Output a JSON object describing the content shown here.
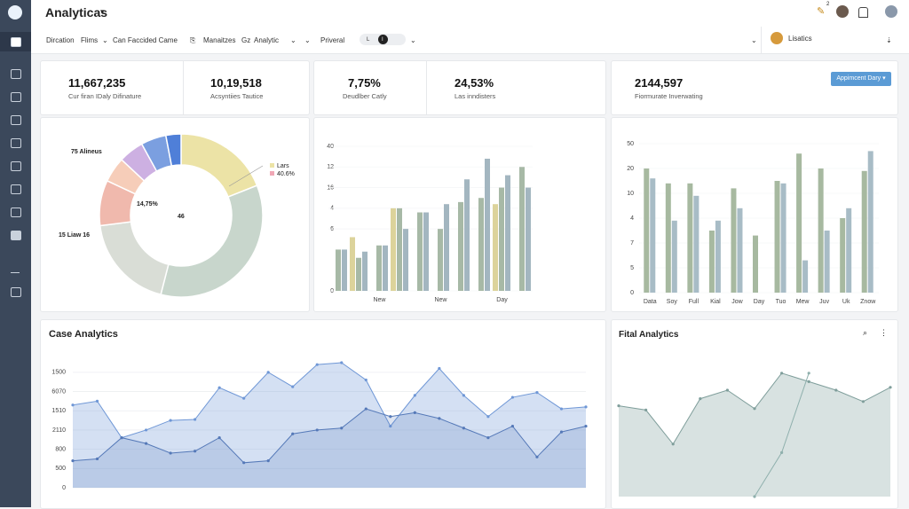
{
  "header": {
    "title": "Analyticas",
    "badge": "2"
  },
  "filters": {
    "items": [
      "Dircation",
      "Flims",
      "Can Faccided Came",
      "Manaitzes",
      "Gz",
      "Analytic",
      "Priveral"
    ],
    "toggle": [
      "L",
      "I"
    ],
    "user": "Lisatics"
  },
  "kpis": [
    {
      "value": "11,667,235",
      "label": "Cur firan IDaly Difinature"
    },
    {
      "value": "10,19,518",
      "label": "Acsyntiies Tautice"
    },
    {
      "value": "7,75%",
      "label": "Deudlber Catly"
    },
    {
      "value": "24,53%",
      "label": "Las inndisters"
    },
    {
      "value": "2144,597",
      "label": "Fiormurate Inverwating"
    }
  ],
  "button": "Appimcent Dary",
  "chart_data": [
    {
      "type": "pie",
      "values": [
        19,
        35,
        19,
        9,
        5,
        5,
        5,
        3
      ],
      "colors": [
        "#ece3a6",
        "#c8d6cc",
        "#d9ddd6",
        "#f0b9ad",
        "#f6cdb9",
        "#cdb0e2",
        "#7b9fe0",
        "#4f7fd8"
      ],
      "annotations": [
        "75 Alineus",
        "14,75%",
        "46",
        "15 Liaw 16"
      ],
      "legend": [
        {
          "name": "Lars",
          "color": "#ece3a6"
        },
        {
          "name": "40.6%",
          "color": "#f0a7b5"
        }
      ]
    },
    {
      "type": "bar",
      "categories": [
        null,
        null,
        "New",
        null,
        null,
        "New",
        null,
        null,
        "Day",
        null
      ],
      "series": [
        {
          "color": "#dcd39b",
          "values": [
            null,
            26,
            null,
            40,
            null,
            null,
            null,
            null,
            42,
            null
          ]
        },
        {
          "color": "#a7b9a6",
          "values": [
            20,
            16,
            22,
            40,
            38,
            30,
            43,
            45,
            50,
            60
          ]
        },
        {
          "color": "#a3b6c0",
          "values": [
            20,
            19,
            22,
            30,
            38,
            42,
            54,
            64,
            56,
            50
          ]
        }
      ],
      "ylim": [
        0,
        70
      ],
      "yticks": [
        {
          "value": 70,
          "label": "40"
        },
        {
          "value": 60,
          "label": "12"
        },
        {
          "value": 50,
          "label": "16"
        },
        {
          "value": 40,
          "label": "4"
        },
        {
          "value": 30,
          "label": "6"
        },
        0
      ]
    },
    {
      "type": "bar",
      "categories": [
        "Data",
        "Soy",
        "Full",
        "Kial",
        "Jow",
        "Day",
        "Tuo",
        "Mew",
        "Juv",
        "Uk",
        "Znow"
      ],
      "series": [
        {
          "color": "#a7b9a0",
          "values": [
            50,
            44,
            44,
            25,
            42,
            23,
            45,
            56,
            50,
            30,
            49
          ]
        },
        {
          "color": "#a8bcc6",
          "values": [
            46,
            29,
            39,
            29,
            34,
            null,
            44,
            13,
            25,
            34,
            57
          ]
        }
      ],
      "ylim": [
        0,
        60
      ],
      "yticks": [
        {
          "value": 60,
          "label": "50"
        },
        {
          "value": 50,
          "label": "20"
        },
        {
          "value": 40,
          "label": "10"
        },
        {
          "value": 30,
          "label": "4"
        },
        {
          "value": 20,
          "label": "7"
        },
        {
          "value": 10,
          "label": "5"
        },
        0
      ]
    },
    {
      "type": "area",
      "title": "Case Analytics",
      "categories": [
        null,
        null,
        null,
        null,
        null,
        null,
        null,
        null,
        null,
        null,
        null,
        null,
        null,
        null,
        null,
        null,
        null,
        null,
        null,
        null,
        null,
        null
      ],
      "series": [
        {
          "color": "#6f97d6",
          "values": [
            430,
            450,
            260,
            300,
            350,
            355,
            520,
            465,
            600,
            525,
            640,
            650,
            560,
            320,
            480,
            620,
            480,
            370,
            470,
            495,
            410,
            420
          ]
        },
        {
          "color": "#5579b8",
          "values": [
            140,
            150,
            260,
            230,
            180,
            190,
            260,
            130,
            140,
            280,
            300,
            310,
            410,
            370,
            390,
            360,
            310,
            260,
            320,
            160,
            290,
            320
          ]
        }
      ],
      "ylim": [
        0,
        650
      ],
      "yticks": [
        {
          "value": 600,
          "label": "1500"
        },
        {
          "value": 500,
          "label": "6070"
        },
        {
          "value": 400,
          "label": "1510"
        },
        {
          "value": 300,
          "label": "2110"
        },
        {
          "value": 200,
          "label": "800"
        },
        {
          "value": 100,
          "label": "500"
        },
        0
      ]
    },
    {
      "type": "area",
      "title": "Fital Analytics",
      "categories": [
        null,
        null,
        null,
        null,
        null,
        null,
        null,
        null,
        null,
        null,
        null
      ],
      "series": [
        {
          "color": "#7f9e9b",
          "values": [
            64,
            61,
            37,
            69,
            75,
            62,
            87,
            81,
            75,
            67,
            77
          ]
        },
        {
          "color": "#8fb0ad",
          "values": [
            null,
            null,
            null,
            null,
            null,
            0,
            31,
            87,
            null,
            null,
            null
          ]
        }
      ],
      "ylim": [
        0,
        100
      ]
    }
  ]
}
